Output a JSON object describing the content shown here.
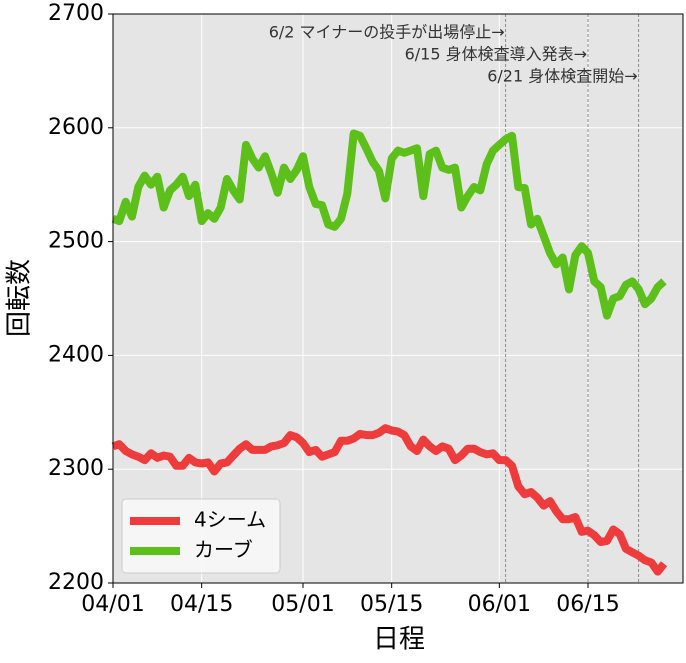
{
  "chart_data": {
    "type": "line",
    "xlabel": "日程",
    "ylabel": "回転数",
    "x": [
      "04/01",
      "04/02",
      "04/03",
      "04/04",
      "04/05",
      "04/06",
      "04/07",
      "04/08",
      "04/09",
      "04/10",
      "04/11",
      "04/12",
      "04/13",
      "04/14",
      "04/15",
      "04/16",
      "04/17",
      "04/18",
      "04/19",
      "04/20",
      "04/21",
      "04/22",
      "04/23",
      "04/24",
      "04/25",
      "04/26",
      "04/27",
      "04/28",
      "04/29",
      "04/30",
      "05/01",
      "05/02",
      "05/03",
      "05/04",
      "05/05",
      "05/06",
      "05/07",
      "05/08",
      "05/09",
      "05/10",
      "05/11",
      "05/12",
      "05/13",
      "05/14",
      "05/15",
      "05/16",
      "05/17",
      "05/18",
      "05/19",
      "05/20",
      "05/21",
      "05/22",
      "05/23",
      "05/24",
      "05/25",
      "05/26",
      "05/27",
      "05/28",
      "05/29",
      "05/30",
      "05/31",
      "06/01",
      "06/02",
      "06/03",
      "06/04",
      "06/05",
      "06/06",
      "06/07",
      "06/08",
      "06/09",
      "06/10",
      "06/11",
      "06/12",
      "06/13",
      "06/14",
      "06/15",
      "06/16",
      "06/17",
      "06/18",
      "06/19",
      "06/20",
      "06/21",
      "06/22",
      "06/23",
      "06/24",
      "06/25",
      "06/26",
      "06/27"
    ],
    "series": [
      {
        "name": "4シーム",
        "color": "#ee3b3b",
        "values": [
          2320,
          2322,
          2316,
          2313,
          2311,
          2308,
          2314,
          2310,
          2312,
          2311,
          2303,
          2303,
          2310,
          2306,
          2305,
          2306,
          2298,
          2305,
          2306,
          2312,
          2318,
          2322,
          2317,
          2317,
          2317,
          2320,
          2321,
          2323,
          2330,
          2328,
          2323,
          2315,
          2317,
          2311,
          2313,
          2315,
          2325,
          2325,
          2327,
          2331,
          2330,
          2330,
          2332,
          2336,
          2334,
          2333,
          2330,
          2320,
          2316,
          2326,
          2320,
          2316,
          2320,
          2318,
          2308,
          2312,
          2318,
          2318,
          2315,
          2313,
          2314,
          2308,
          2308,
          2303,
          2285,
          2278,
          2280,
          2275,
          2268,
          2272,
          2263,
          2256,
          2256,
          2258,
          2245,
          2246,
          2242,
          2236,
          2237,
          2247,
          2243,
          2230,
          2227,
          2224,
          2220,
          2218,
          2210,
          2217
        ]
      },
      {
        "name": "カーブ",
        "color": "#5cbf1a",
        "values": [
          2520,
          2518,
          2535,
          2522,
          2548,
          2558,
          2550,
          2557,
          2530,
          2545,
          2550,
          2557,
          2540,
          2550,
          2518,
          2525,
          2520,
          2530,
          2555,
          2545,
          2537,
          2585,
          2573,
          2565,
          2575,
          2560,
          2543,
          2565,
          2555,
          2563,
          2575,
          2548,
          2533,
          2532,
          2515,
          2513,
          2520,
          2542,
          2595,
          2593,
          2582,
          2570,
          2562,
          2538,
          2573,
          2580,
          2578,
          2580,
          2582,
          2540,
          2577,
          2580,
          2565,
          2563,
          2565,
          2530,
          2540,
          2548,
          2545,
          2568,
          2580,
          2585,
          2590,
          2593,
          2548,
          2547,
          2515,
          2520,
          2505,
          2490,
          2480,
          2486,
          2458,
          2488,
          2496,
          2490,
          2465,
          2460,
          2435,
          2450,
          2452,
          2462,
          2465,
          2458,
          2445,
          2450,
          2460,
          2465
        ]
      }
    ],
    "xlim": [
      "04/01",
      "06/30"
    ],
    "xticks": [
      "04/01",
      "04/15",
      "05/01",
      "05/15",
      "06/01",
      "06/15"
    ],
    "ylim": [
      2200,
      2700
    ],
    "yticks": [
      2200,
      2300,
      2400,
      2500,
      2600,
      2700
    ],
    "grid": true,
    "legend": "lower left",
    "annotations": [
      {
        "text": "6/2 マイナーの投手が出場停止→",
        "x": "06/02"
      },
      {
        "text": "6/15 身体検査導入発表→",
        "x": "06/15"
      },
      {
        "text": "6/21 身体検査開始→",
        "x": "06/23"
      }
    ]
  }
}
